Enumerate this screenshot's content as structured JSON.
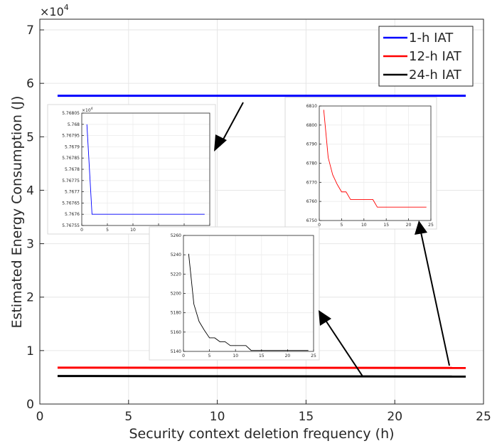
{
  "chart_data": {
    "type": "line",
    "xlabel": "Security context deletion frequency (h)",
    "ylabel": "Estimated Energy Consumption (J)",
    "yexponent": "×10",
    "yexponent_power": "4",
    "xlim": [
      0,
      25
    ],
    "ylim": [
      0,
      7.2
    ],
    "xticks": [
      0,
      5,
      10,
      15,
      20,
      25
    ],
    "yticks": [
      0,
      1,
      2,
      3,
      4,
      5,
      6,
      7
    ],
    "grid": true,
    "legend_position": "top-right",
    "x": [
      1,
      24
    ],
    "series": [
      {
        "name": "1-h IAT",
        "color": "#0000ff",
        "values": [
          5.768,
          5.7676
        ]
      },
      {
        "name": "12-h IAT",
        "color": "#ff0000",
        "values": [
          0.6808,
          0.6757
        ]
      },
      {
        "name": "24-h IAT",
        "color": "#000000",
        "values": [
          0.5241,
          0.5141
        ]
      }
    ],
    "insets": [
      {
        "series": "1-h IAT",
        "color": "#0000ff",
        "exponent_label": "×10",
        "exponent_power": "4",
        "xlim": [
          0,
          25
        ],
        "ylim": [
          5.76755,
          5.76805
        ],
        "xticks": [
          0,
          5,
          10,
          15,
          20,
          25
        ],
        "yticks": [
          5.76755,
          5.7676,
          5.76765,
          5.7677,
          5.76775,
          5.7678,
          5.76785,
          5.7679,
          5.76795,
          5.768,
          5.76805
        ],
        "ytick_labels": [
          "5.76755",
          "5.7676",
          "5.76765",
          "5.7677",
          "5.76775",
          "5.7678",
          "5.76785",
          "5.7679",
          "5.76795",
          "5.768",
          "5.76805"
        ],
        "x": [
          1,
          2,
          24
        ],
        "y": [
          5.768,
          5.7676,
          5.7676
        ]
      },
      {
        "series": "12-h IAT",
        "color": "#ff0000",
        "xlim": [
          0,
          25
        ],
        "ylim": [
          6750,
          6810
        ],
        "xticks": [
          0,
          5,
          10,
          15,
          20,
          25
        ],
        "yticks": [
          6750,
          6760,
          6770,
          6780,
          6790,
          6800,
          6810
        ],
        "ytick_labels": [
          "6750",
          "6760",
          "6770",
          "6780",
          "6790",
          "6800",
          "6810"
        ],
        "x": [
          1,
          2,
          3,
          4,
          5,
          6,
          7,
          8,
          9,
          10,
          11,
          12,
          13,
          14,
          15,
          16,
          17,
          18,
          19,
          20,
          21,
          22,
          23,
          24
        ],
        "y": [
          6808,
          6783,
          6774,
          6769,
          6765,
          6765,
          6761,
          6761,
          6761,
          6761,
          6761,
          6761,
          6757,
          6757,
          6757,
          6757,
          6757,
          6757,
          6757,
          6757,
          6757,
          6757,
          6757,
          6757
        ]
      },
      {
        "series": "24-h IAT",
        "color": "#000000",
        "xlim": [
          0,
          25
        ],
        "ylim": [
          5140,
          5260
        ],
        "xticks": [
          0,
          5,
          10,
          15,
          20,
          25
        ],
        "yticks": [
          5140,
          5160,
          5180,
          5200,
          5220,
          5240,
          5260
        ],
        "ytick_labels": [
          "5140",
          "5160",
          "5180",
          "5200",
          "5220",
          "5240",
          "5260"
        ],
        "x": [
          1,
          2,
          3,
          4,
          5,
          6,
          7,
          8,
          9,
          10,
          11,
          12,
          13,
          14,
          15,
          16,
          17,
          18,
          19,
          20,
          21,
          22,
          23,
          24
        ],
        "y": [
          5241,
          5189,
          5171,
          5162,
          5154,
          5154,
          5150,
          5150,
          5146,
          5146,
          5146,
          5146,
          5141,
          5141,
          5141,
          5141,
          5141,
          5141,
          5141,
          5141,
          5141,
          5141,
          5141,
          5141
        ]
      }
    ]
  }
}
